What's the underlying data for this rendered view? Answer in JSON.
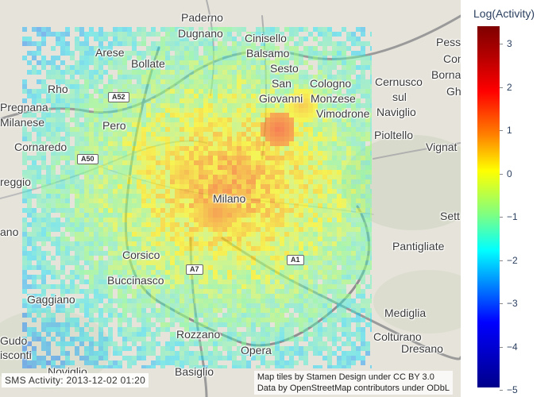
{
  "colorbar": {
    "title": "Log(Activity)",
    "ticks": [
      "3",
      "2",
      "1",
      "0",
      "−1",
      "−2",
      "−3",
      "−4",
      "−5"
    ],
    "range": [
      -5,
      3.3
    ],
    "colorscale": "jet"
  },
  "caption": "SMS Activity: 2013-12-02 01:20",
  "attribution": {
    "line1": "Map tiles by Stamen Design under CC BY 3.0",
    "line2": "Data by OpenStreetMap contributors under ODbL"
  },
  "places": {
    "paderno": "Paderno",
    "dugnano": "Dugnano",
    "cinisello": "Cinisello",
    "balsamo": "Balsamo",
    "sesto": "Sesto",
    "san": "San",
    "giovanni": "Giovanni",
    "arese": "Arese",
    "bollate": "Bollate",
    "rho": "Rho",
    "pregnana": "Pregnana",
    "milanese": "Milanese",
    "pero": "Pero",
    "cornaredo": "Cornaredo",
    "reggio": "reggio",
    "ano": "ano",
    "corsico": "Corsico",
    "buccinasco": "Buccinasco",
    "gaggiano": "Gaggiano",
    "gudo": "Gudo",
    "isconti": "isconti",
    "noviglio": "Noviglio",
    "rozzano": "Rozzano",
    "basiglio": "Basiglio",
    "opera": "Opera",
    "milano": "Milano",
    "cologno": "Cologno",
    "monzese": "Monzese",
    "vimodrone": "Vimodrone",
    "cernusco": "Cernusco",
    "sul": "sul",
    "naviglio": "Naviglio",
    "pioltello": "Pioltello",
    "vignat": "Vignat",
    "pessa": "Pessa",
    "con": "Con",
    "borna": "Borna",
    "gh": "Gh",
    "sett": "Sett",
    "pantigliate": "Pantigliate",
    "mediglia": "Mediglia",
    "colturano": "Colturano",
    "dresano": "Dresano"
  },
  "roads": {
    "a52": "A52",
    "a50": "A50",
    "a1": "A1",
    "a7": "A7"
  }
}
